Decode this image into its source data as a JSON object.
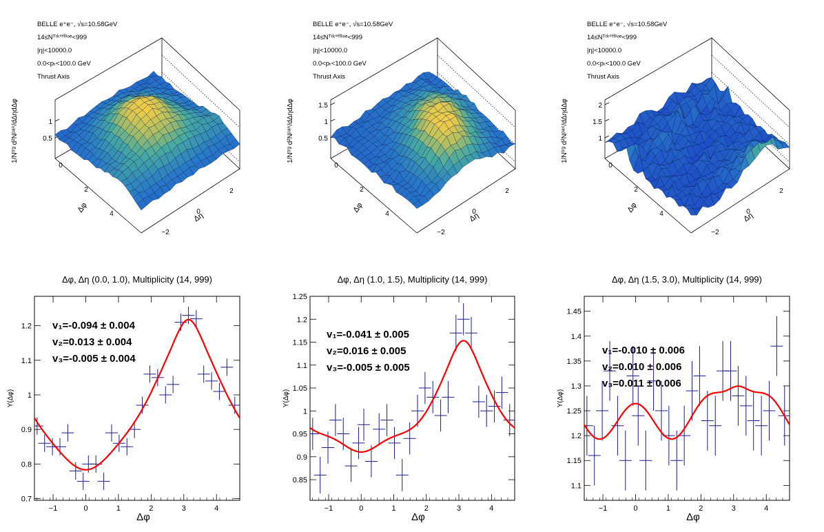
{
  "top_panels": [
    {
      "info": [
        "BELLE e⁺e⁻, √s=10.58GeV",
        "14≤Nᵀʳᵏ°ᶠᶠˡⁱⁿᵉ<999",
        "|η|<10000.0",
        "0.0<pₜ<100.0 GeV",
        "Thrust Axis"
      ],
      "zlabel": "1/Nᵗʳᵍ d²Nᵖᵃⁱʳ/dΔηdΔφ",
      "zticks": [
        "0.5",
        "1"
      ],
      "dphi_ticks": [
        "0",
        "2",
        "4"
      ],
      "deta_ticks": [
        "−2",
        "0",
        "2"
      ],
      "dphi_label": "Δφ",
      "deta_label": "Δη"
    },
    {
      "info": [
        "BELLE e⁺e⁻, √s=10.58GeV",
        "14≤Nᵀʳᵏ°ᶠᶠˡⁱⁿᵉ<999",
        "|η|<10000.0",
        "0.0<pₜ<100.0 GeV",
        "Thrust Axis"
      ],
      "zlabel": "1/Nᵗʳᵍ d²Nᵖᵃⁱʳ/dΔηdΔφ",
      "zticks": [
        "0.5",
        "1",
        "1.5"
      ],
      "dphi_ticks": [
        "0",
        "2",
        "4"
      ],
      "deta_ticks": [
        "−2",
        "0",
        "2"
      ],
      "dphi_label": "Δφ",
      "deta_label": "Δη"
    },
    {
      "info": [
        "BELLE e⁺e⁻, √s=10.58GeV",
        "14≤Nᵀʳᵏ°ᶠᶠˡⁱⁿᵉ<999",
        "|η|<10000.0",
        "0.0<pₜ<100.0 GeV",
        "Thrust Axis"
      ],
      "zlabel": "1/Nᵗʳᵍ d²Nᵖᵃⁱʳ/dΔηdΔφ",
      "zticks": [
        "1",
        "1.5",
        "2"
      ],
      "dphi_ticks": [
        "0",
        "2",
        "4"
      ],
      "deta_ticks": [
        "−2",
        "0",
        "2"
      ],
      "dphi_label": "Δφ",
      "deta_label": "Δη"
    }
  ],
  "colors": {
    "fit": "#ff0000",
    "points": "#1a1a8c",
    "surface_low": "#1d3fd6",
    "surface_mid": "#3fa3a8",
    "surface_high": "#f5d04a"
  },
  "chart_data": [
    {
      "type": "scatter",
      "title": "Δφ, Δη (0.0, 1.0), Multiplicity (14, 999)",
      "xlabel": "Δφ",
      "ylabel": "Y(Δφ)",
      "xlim": [
        -1.5708,
        4.7124
      ],
      "ylim": [
        0.695,
        1.285
      ],
      "xticks": [
        -1,
        0,
        1,
        2,
        3,
        4
      ],
      "yticks": [
        0.7,
        0.8,
        0.9,
        1.0,
        1.1,
        1.2
      ],
      "ytick_labels": [
        "0.7",
        "0.8",
        "0.9",
        "1",
        "1.1",
        "1.2"
      ],
      "fit": {
        "a0": 0.958,
        "v1": -0.094,
        "v2": 0.013,
        "v3": -0.005,
        "extra": [
          0.045,
          0.01
        ]
      },
      "coefficients": [
        "v₁=-0.094 ± 0.004",
        "v₂=0.013 ± 0.004",
        "v₃=-0.005 ± 0.004"
      ],
      "points": [
        {
          "x": -1.49,
          "y": 0.91,
          "e": 0.025
        },
        {
          "x": -1.26,
          "y": 0.86,
          "e": 0.025
        },
        {
          "x": -1.02,
          "y": 0.85,
          "e": 0.025
        },
        {
          "x": -0.79,
          "y": 0.85,
          "e": 0.025
        },
        {
          "x": -0.55,
          "y": 0.89,
          "e": 0.025
        },
        {
          "x": -0.31,
          "y": 0.78,
          "e": 0.025
        },
        {
          "x": -0.08,
          "y": 0.75,
          "e": 0.025
        },
        {
          "x": 0.08,
          "y": 0.8,
          "e": 0.025
        },
        {
          "x": 0.31,
          "y": 0.8,
          "e": 0.025
        },
        {
          "x": 0.55,
          "y": 0.75,
          "e": 0.025
        },
        {
          "x": 0.79,
          "y": 0.89,
          "e": 0.025
        },
        {
          "x": 1.02,
          "y": 0.86,
          "e": 0.025
        },
        {
          "x": 1.26,
          "y": 0.85,
          "e": 0.025
        },
        {
          "x": 1.49,
          "y": 0.9,
          "e": 0.025
        },
        {
          "x": 1.73,
          "y": 0.97,
          "e": 0.025
        },
        {
          "x": 1.96,
          "y": 1.06,
          "e": 0.025
        },
        {
          "x": 2.2,
          "y": 1.05,
          "e": 0.025
        },
        {
          "x": 2.44,
          "y": 1.0,
          "e": 0.025
        },
        {
          "x": 2.67,
          "y": 1.03,
          "e": 0.025
        },
        {
          "x": 2.91,
          "y": 1.21,
          "e": 0.025
        },
        {
          "x": 3.14,
          "y": 1.23,
          "e": 0.025
        },
        {
          "x": 3.38,
          "y": 1.22,
          "e": 0.025
        },
        {
          "x": 3.61,
          "y": 1.06,
          "e": 0.025
        },
        {
          "x": 3.85,
          "y": 1.04,
          "e": 0.025
        },
        {
          "x": 4.09,
          "y": 1.01,
          "e": 0.025
        },
        {
          "x": 4.32,
          "y": 1.08,
          "e": 0.025
        },
        {
          "x": 4.56,
          "y": 0.97,
          "e": 0.025
        }
      ]
    },
    {
      "type": "scatter",
      "title": "Δφ, Δη (1.0, 1.5), Multiplicity (14, 999)",
      "xlabel": "Δφ",
      "ylabel": "Y(Δφ)",
      "xlim": [
        -1.5708,
        4.7124
      ],
      "ylim": [
        0.805,
        1.25
      ],
      "xticks": [
        -1,
        0,
        1,
        2,
        3,
        4
      ],
      "yticks": [
        0.85,
        0.9,
        0.95,
        1.0,
        1.05,
        1.1,
        1.15,
        1.2,
        1.25
      ],
      "ytick_labels": [
        "0.85",
        "0.9",
        "0.95",
        "1",
        "1.05",
        "1.1",
        "1.15",
        "1.2",
        "1.25"
      ],
      "fit": {
        "a0": 0.995,
        "v1": -0.041,
        "v2": 0.016,
        "v3": -0.005,
        "extra": [
          0.035,
          0.025
        ]
      },
      "coefficients": [
        "v₁=-0.041 ± 0.005",
        "v₂=0.016 ± 0.005",
        "v₃=-0.005 ± 0.005"
      ],
      "points": [
        {
          "x": -1.49,
          "y": 0.95,
          "e": 0.035
        },
        {
          "x": -1.26,
          "y": 0.86,
          "e": 0.04
        },
        {
          "x": -1.02,
          "y": 0.92,
          "e": 0.035
        },
        {
          "x": -0.79,
          "y": 0.98,
          "e": 0.035
        },
        {
          "x": -0.55,
          "y": 0.95,
          "e": 0.035
        },
        {
          "x": -0.31,
          "y": 0.88,
          "e": 0.035
        },
        {
          "x": -0.08,
          "y": 0.93,
          "e": 0.035
        },
        {
          "x": 0.08,
          "y": 0.97,
          "e": 0.035
        },
        {
          "x": 0.31,
          "y": 0.89,
          "e": 0.035
        },
        {
          "x": 0.55,
          "y": 0.96,
          "e": 0.035
        },
        {
          "x": 0.79,
          "y": 0.98,
          "e": 0.035
        },
        {
          "x": 1.02,
          "y": 0.93,
          "e": 0.035
        },
        {
          "x": 1.26,
          "y": 0.86,
          "e": 0.035
        },
        {
          "x": 1.49,
          "y": 0.94,
          "e": 0.035
        },
        {
          "x": 1.73,
          "y": 1.0,
          "e": 0.035
        },
        {
          "x": 1.96,
          "y": 1.05,
          "e": 0.035
        },
        {
          "x": 2.2,
          "y": 1.03,
          "e": 0.035
        },
        {
          "x": 2.44,
          "y": 0.99,
          "e": 0.035
        },
        {
          "x": 2.67,
          "y": 1.03,
          "e": 0.035
        },
        {
          "x": 2.91,
          "y": 1.17,
          "e": 0.04
        },
        {
          "x": 3.14,
          "y": 1.2,
          "e": 0.035
        },
        {
          "x": 3.38,
          "y": 1.17,
          "e": 0.035
        },
        {
          "x": 3.61,
          "y": 1.02,
          "e": 0.035
        },
        {
          "x": 3.85,
          "y": 1.0,
          "e": 0.035
        },
        {
          "x": 4.09,
          "y": 1.01,
          "e": 0.035
        },
        {
          "x": 4.32,
          "y": 1.04,
          "e": 0.035
        },
        {
          "x": 4.56,
          "y": 0.98,
          "e": 0.035
        }
      ]
    },
    {
      "type": "scatter",
      "title": "Δφ, Δη (1.5, 3.0), Multiplicity (14, 999)",
      "xlabel": "Δφ",
      "ylabel": "Y(Δφ)",
      "xlim": [
        -1.5708,
        4.7124
      ],
      "ylim": [
        1.07,
        1.48
      ],
      "xticks": [
        -1,
        0,
        1,
        2,
        3,
        4
      ],
      "yticks": [
        1.1,
        1.15,
        1.2,
        1.25,
        1.3,
        1.35,
        1.4,
        1.45
      ],
      "ytick_labels": [
        "1.1",
        "1.15",
        "1.2",
        "1.25",
        "1.3",
        "1.35",
        "1.4",
        "1.45"
      ],
      "fit": {
        "a0": 1.247,
        "v1": -0.01,
        "v2": 0.01,
        "v3": 0.011,
        "extra": [
          0.03,
          0.01
        ]
      },
      "coefficients": [
        "v₁=-0.010 ± 0.006",
        "v₂=0.010 ± 0.006",
        "v₃=0.011 ± 0.006"
      ],
      "points": [
        {
          "x": -1.49,
          "y": 1.22,
          "e": 0.06
        },
        {
          "x": -1.26,
          "y": 1.16,
          "e": 0.06
        },
        {
          "x": -1.02,
          "y": 1.25,
          "e": 0.06
        },
        {
          "x": -0.79,
          "y": 1.33,
          "e": 0.06
        },
        {
          "x": -0.55,
          "y": 1.22,
          "e": 0.06
        },
        {
          "x": -0.31,
          "y": 1.15,
          "e": 0.06
        },
        {
          "x": -0.08,
          "y": 1.32,
          "e": 0.06
        },
        {
          "x": 0.08,
          "y": 1.24,
          "e": 0.06
        },
        {
          "x": 0.31,
          "y": 1.15,
          "e": 0.06
        },
        {
          "x": 0.55,
          "y": 1.31,
          "e": 0.06
        },
        {
          "x": 0.79,
          "y": 1.25,
          "e": 0.06
        },
        {
          "x": 1.02,
          "y": 1.2,
          "e": 0.06
        },
        {
          "x": 1.26,
          "y": 1.15,
          "e": 0.06
        },
        {
          "x": 1.49,
          "y": 1.2,
          "e": 0.06
        },
        {
          "x": 1.73,
          "y": 1.29,
          "e": 0.06
        },
        {
          "x": 1.96,
          "y": 1.32,
          "e": 0.06
        },
        {
          "x": 2.2,
          "y": 1.23,
          "e": 0.06
        },
        {
          "x": 2.44,
          "y": 1.22,
          "e": 0.06
        },
        {
          "x": 2.67,
          "y": 1.33,
          "e": 0.06
        },
        {
          "x": 2.91,
          "y": 1.33,
          "e": 0.06
        },
        {
          "x": 3.14,
          "y": 1.28,
          "e": 0.06
        },
        {
          "x": 3.38,
          "y": 1.26,
          "e": 0.06
        },
        {
          "x": 3.61,
          "y": 1.23,
          "e": 0.06
        },
        {
          "x": 3.85,
          "y": 1.22,
          "e": 0.06
        },
        {
          "x": 4.09,
          "y": 1.25,
          "e": 0.06
        },
        {
          "x": 4.32,
          "y": 1.38,
          "e": 0.06
        },
        {
          "x": 4.56,
          "y": 1.24,
          "e": 0.06
        }
      ]
    }
  ]
}
